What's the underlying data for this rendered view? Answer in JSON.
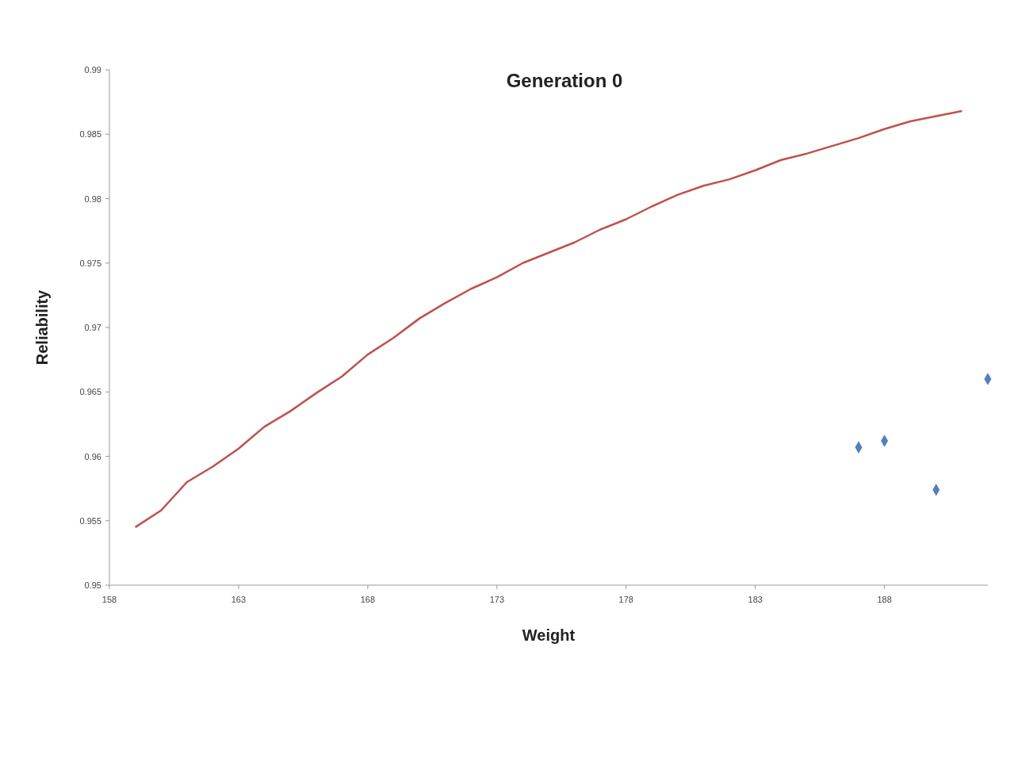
{
  "chart_data": {
    "type": "line",
    "title": "Generation 0",
    "xlabel": "Weight",
    "ylabel": "Reliability",
    "xlim": [
      158,
      192
    ],
    "xticks": [
      158,
      163,
      168,
      173,
      178,
      183,
      188
    ],
    "ylim": [
      0.95,
      0.99
    ],
    "yticks": [
      0.95,
      0.955,
      0.96,
      0.965,
      0.97,
      0.975,
      0.98,
      0.985,
      0.99
    ],
    "grid": false,
    "series": [
      {
        "color": "#c0504d",
        "marker": "none",
        "x": [
          159,
          160,
          161,
          162,
          163,
          164,
          165,
          166,
          167,
          168,
          169,
          170,
          171,
          172,
          173,
          174,
          175,
          176,
          177,
          178,
          179,
          180,
          181,
          182,
          183,
          184,
          185,
          186,
          187,
          188,
          189,
          190,
          191
        ],
        "values": [
          0.9545,
          0.9558,
          0.958,
          0.9592,
          0.9606,
          0.9623,
          0.9635,
          0.9649,
          0.9662,
          0.9679,
          0.9692,
          0.9707,
          0.9719,
          0.973,
          0.9739,
          0.975,
          0.9758,
          0.9766,
          0.9776,
          0.9784,
          0.9794,
          0.9803,
          0.981,
          0.9815,
          0.9822,
          0.983,
          0.9835,
          0.9841,
          0.9847,
          0.9854,
          0.986,
          0.9864,
          0.9868
        ]
      },
      {
        "type": "scatter",
        "color": "#4f81bd",
        "marker": "diamond",
        "x": [
          187,
          188,
          190,
          192
        ],
        "values": [
          0.9607,
          0.9612,
          0.9574,
          0.966
        ]
      }
    ]
  }
}
